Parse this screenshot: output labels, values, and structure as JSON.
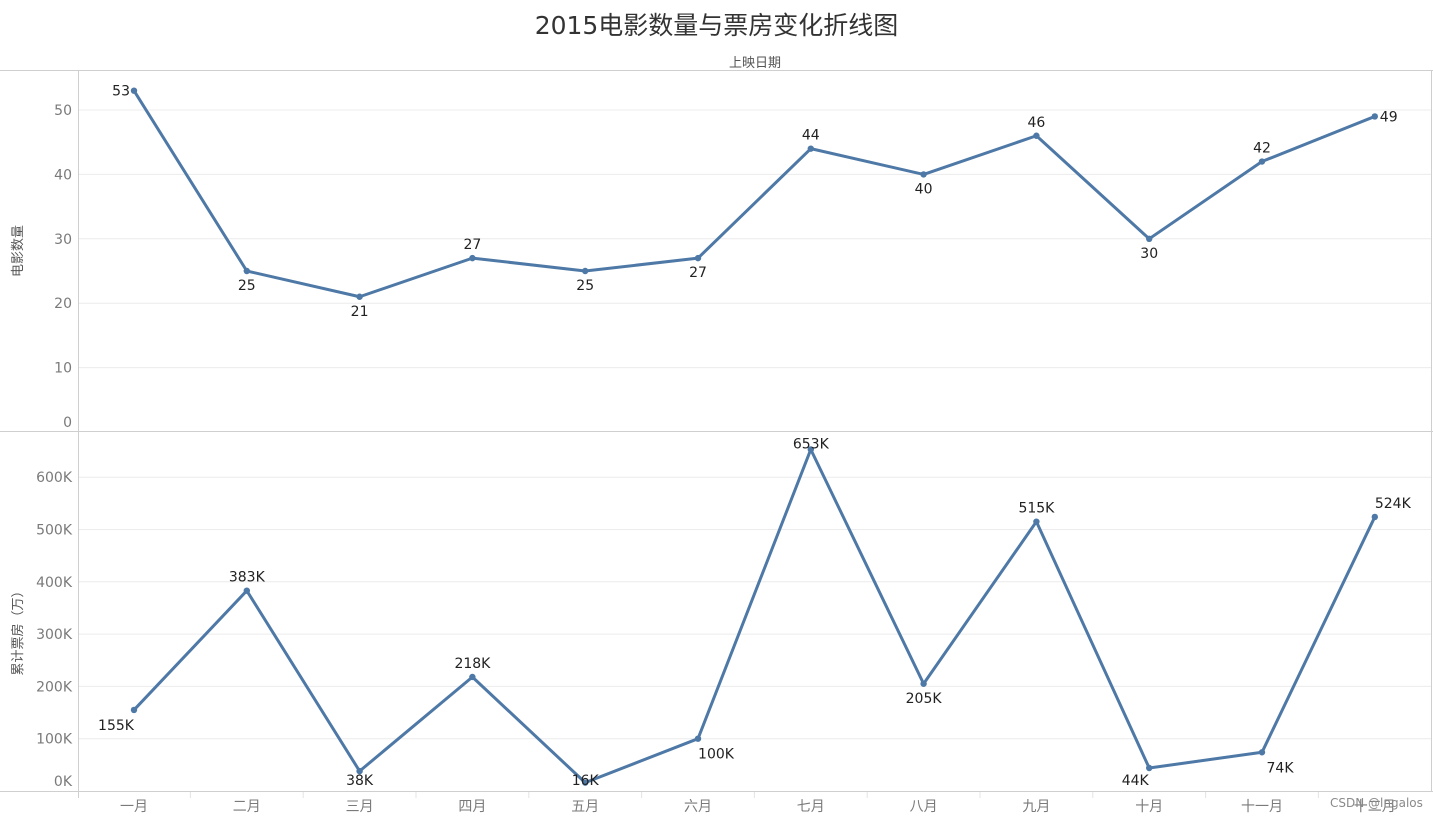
{
  "title": "2015电影数量与票房变化折线图",
  "x_axis_title": "上映日期",
  "watermark": "CSDN @lngalos",
  "line_color": "#4e79a7",
  "chart_data": [
    {
      "type": "line",
      "title": "2015电影数量与票房变化折线图",
      "xlabel": "上映日期",
      "ylabel": "电影数量",
      "categories": [
        "一月",
        "二月",
        "三月",
        "四月",
        "五月",
        "六月",
        "七月",
        "八月",
        "九月",
        "十月",
        "十一月",
        "十二月"
      ],
      "values": [
        53,
        25,
        21,
        27,
        25,
        27,
        44,
        40,
        46,
        30,
        42,
        49
      ],
      "labels": [
        "53",
        "25",
        "21",
        "27",
        "25",
        "27",
        "44",
        "40",
        "46",
        "30",
        "42",
        "49"
      ],
      "yticks": [
        "0",
        "10",
        "20",
        "30",
        "40",
        "50"
      ],
      "ylim": [
        0,
        56
      ],
      "grid": true
    },
    {
      "type": "line",
      "title": "2015电影数量与票房变化折线图",
      "xlabel": "上映日期",
      "ylabel": "累计票房（万）",
      "categories": [
        "一月",
        "二月",
        "三月",
        "四月",
        "五月",
        "六月",
        "七月",
        "八月",
        "九月",
        "十月",
        "十一月",
        "十二月"
      ],
      "values": [
        155000,
        383000,
        38000,
        218000,
        16000,
        100000,
        653000,
        205000,
        515000,
        44000,
        74000,
        524000
      ],
      "labels": [
        "155K",
        "383K",
        "38K",
        "218K",
        "16K",
        "100K",
        "653K",
        "205K",
        "515K",
        "44K",
        "74K",
        "524K"
      ],
      "yticks": [
        "0K",
        "100K",
        "200K",
        "300K",
        "400K",
        "500K",
        "600K"
      ],
      "ylim": [
        0,
        690000
      ],
      "grid": true
    }
  ]
}
